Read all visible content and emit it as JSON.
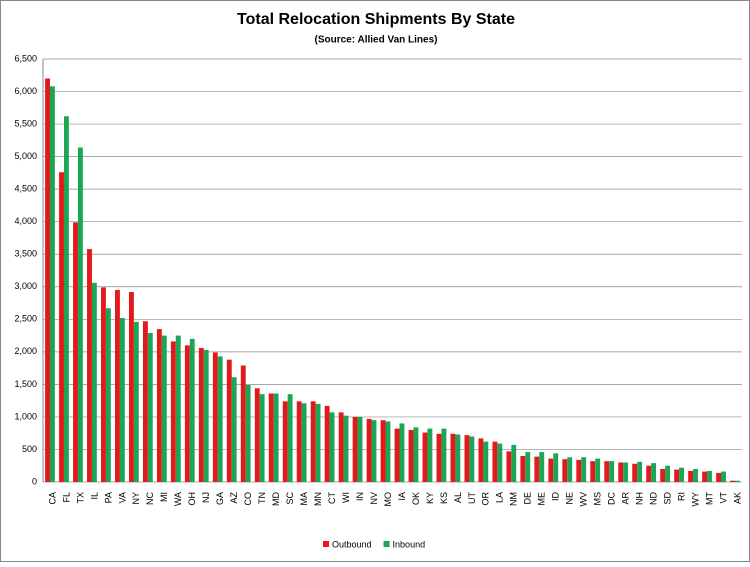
{
  "chart_data": {
    "type": "bar",
    "title": "Total Relocation Shipments By State",
    "subtitle": "(Source:  Allied Van Lines)",
    "categories": [
      "CA",
      "FL",
      "TX",
      "IL",
      "PA",
      "VA",
      "NY",
      "NC",
      "MI",
      "WA",
      "OH",
      "NJ",
      "GA",
      "AZ",
      "CO",
      "TN",
      "MD",
      "SC",
      "MA",
      "MN",
      "CT",
      "WI",
      "IN",
      "NV",
      "MO",
      "IA",
      "OK",
      "KY",
      "KS",
      "AL",
      "UT",
      "OR",
      "LA",
      "NM",
      "DE",
      "ME",
      "ID",
      "NE",
      "WV",
      "MS",
      "DC",
      "AR",
      "NH",
      "ND",
      "SD",
      "RI",
      "WY",
      "MT",
      "VT",
      "AK"
    ],
    "series": [
      {
        "name": "Outbound",
        "color": "#e3191c",
        "values": [
          6200,
          4760,
          3990,
          3580,
          2990,
          2950,
          2920,
          2470,
          2350,
          2160,
          2100,
          2060,
          1990,
          1880,
          1790,
          1440,
          1360,
          1240,
          1240,
          1240,
          1170,
          1070,
          1000,
          970,
          950,
          820,
          800,
          760,
          740,
          740,
          720,
          670,
          620,
          470,
          400,
          390,
          360,
          350,
          340,
          320,
          320,
          300,
          280,
          250,
          200,
          190,
          170,
          160,
          140,
          20
        ]
      },
      {
        "name": "Inbound",
        "color": "#1aa655",
        "values": [
          6080,
          5620,
          5140,
          3060,
          2670,
          2520,
          2460,
          2290,
          2250,
          2250,
          2200,
          2030,
          1930,
          1610,
          1490,
          1350,
          1360,
          1350,
          1210,
          1200,
          1070,
          1020,
          1000,
          950,
          930,
          900,
          840,
          820,
          820,
          730,
          700,
          620,
          590,
          570,
          460,
          460,
          440,
          380,
          380,
          360,
          320,
          300,
          310,
          290,
          250,
          220,
          200,
          170,
          160,
          20
        ]
      }
    ],
    "ylim": [
      0,
      6500
    ],
    "yticks": [
      0,
      500,
      {
        "value": 1000,
        "label": "1,000"
      },
      {
        "value": 1500,
        "label": "1,500"
      },
      {
        "value": 2000,
        "label": "2,000"
      },
      {
        "value": 2500,
        "label": "2,500"
      },
      {
        "value": 3000,
        "label": "3,000"
      },
      {
        "value": 3500,
        "label": "3,500"
      },
      {
        "value": 4000,
        "label": "4,000"
      },
      {
        "value": 4500,
        "label": "4,500"
      },
      {
        "value": 5000,
        "label": "5,000"
      },
      {
        "value": 5500,
        "label": "5,500"
      },
      {
        "value": 6000,
        "label": "6,000"
      },
      {
        "value": 6500,
        "label": "6,500"
      }
    ],
    "grid": true,
    "legend": "bottom"
  }
}
